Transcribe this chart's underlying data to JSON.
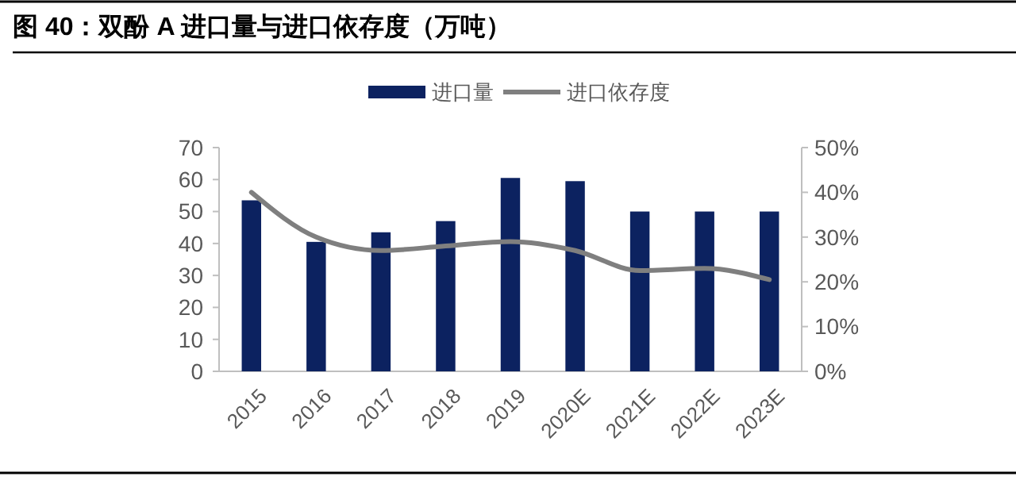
{
  "chart_data": {
    "type": "bar",
    "title": "图 40：双酚 A 进口量与进口依存度（万吨）",
    "categories": [
      "2015",
      "2016",
      "2017",
      "2018",
      "2019",
      "2020E",
      "2021E",
      "2022E",
      "2023E"
    ],
    "series": [
      {
        "name": "进口量",
        "color": "#0c2260",
        "values": [
          53.5,
          40.5,
          43.5,
          47,
          60.5,
          59.5,
          50,
          50,
          50
        ]
      },
      {
        "name": "进口依存度",
        "type": "line",
        "axis": "y2",
        "color": "#7f7f7f",
        "values": [
          40,
          30,
          27,
          28,
          29,
          27,
          22.5,
          23,
          20.5
        ]
      }
    ],
    "ylim": [
      0,
      70
    ],
    "yticks": [
      0,
      10,
      20,
      30,
      40,
      50,
      60,
      70
    ],
    "y2lim": [
      0,
      50
    ],
    "y2ticks": [
      {
        "value": 0,
        "label": "0%"
      },
      {
        "value": 10,
        "label": "10%"
      },
      {
        "value": 20,
        "label": "20%"
      },
      {
        "value": 30,
        "label": "30%"
      },
      {
        "value": 40,
        "label": "40%"
      },
      {
        "value": 50,
        "label": "50%"
      }
    ],
    "legend": "top",
    "grid": false,
    "marker": "none",
    "line_style": "solid"
  }
}
